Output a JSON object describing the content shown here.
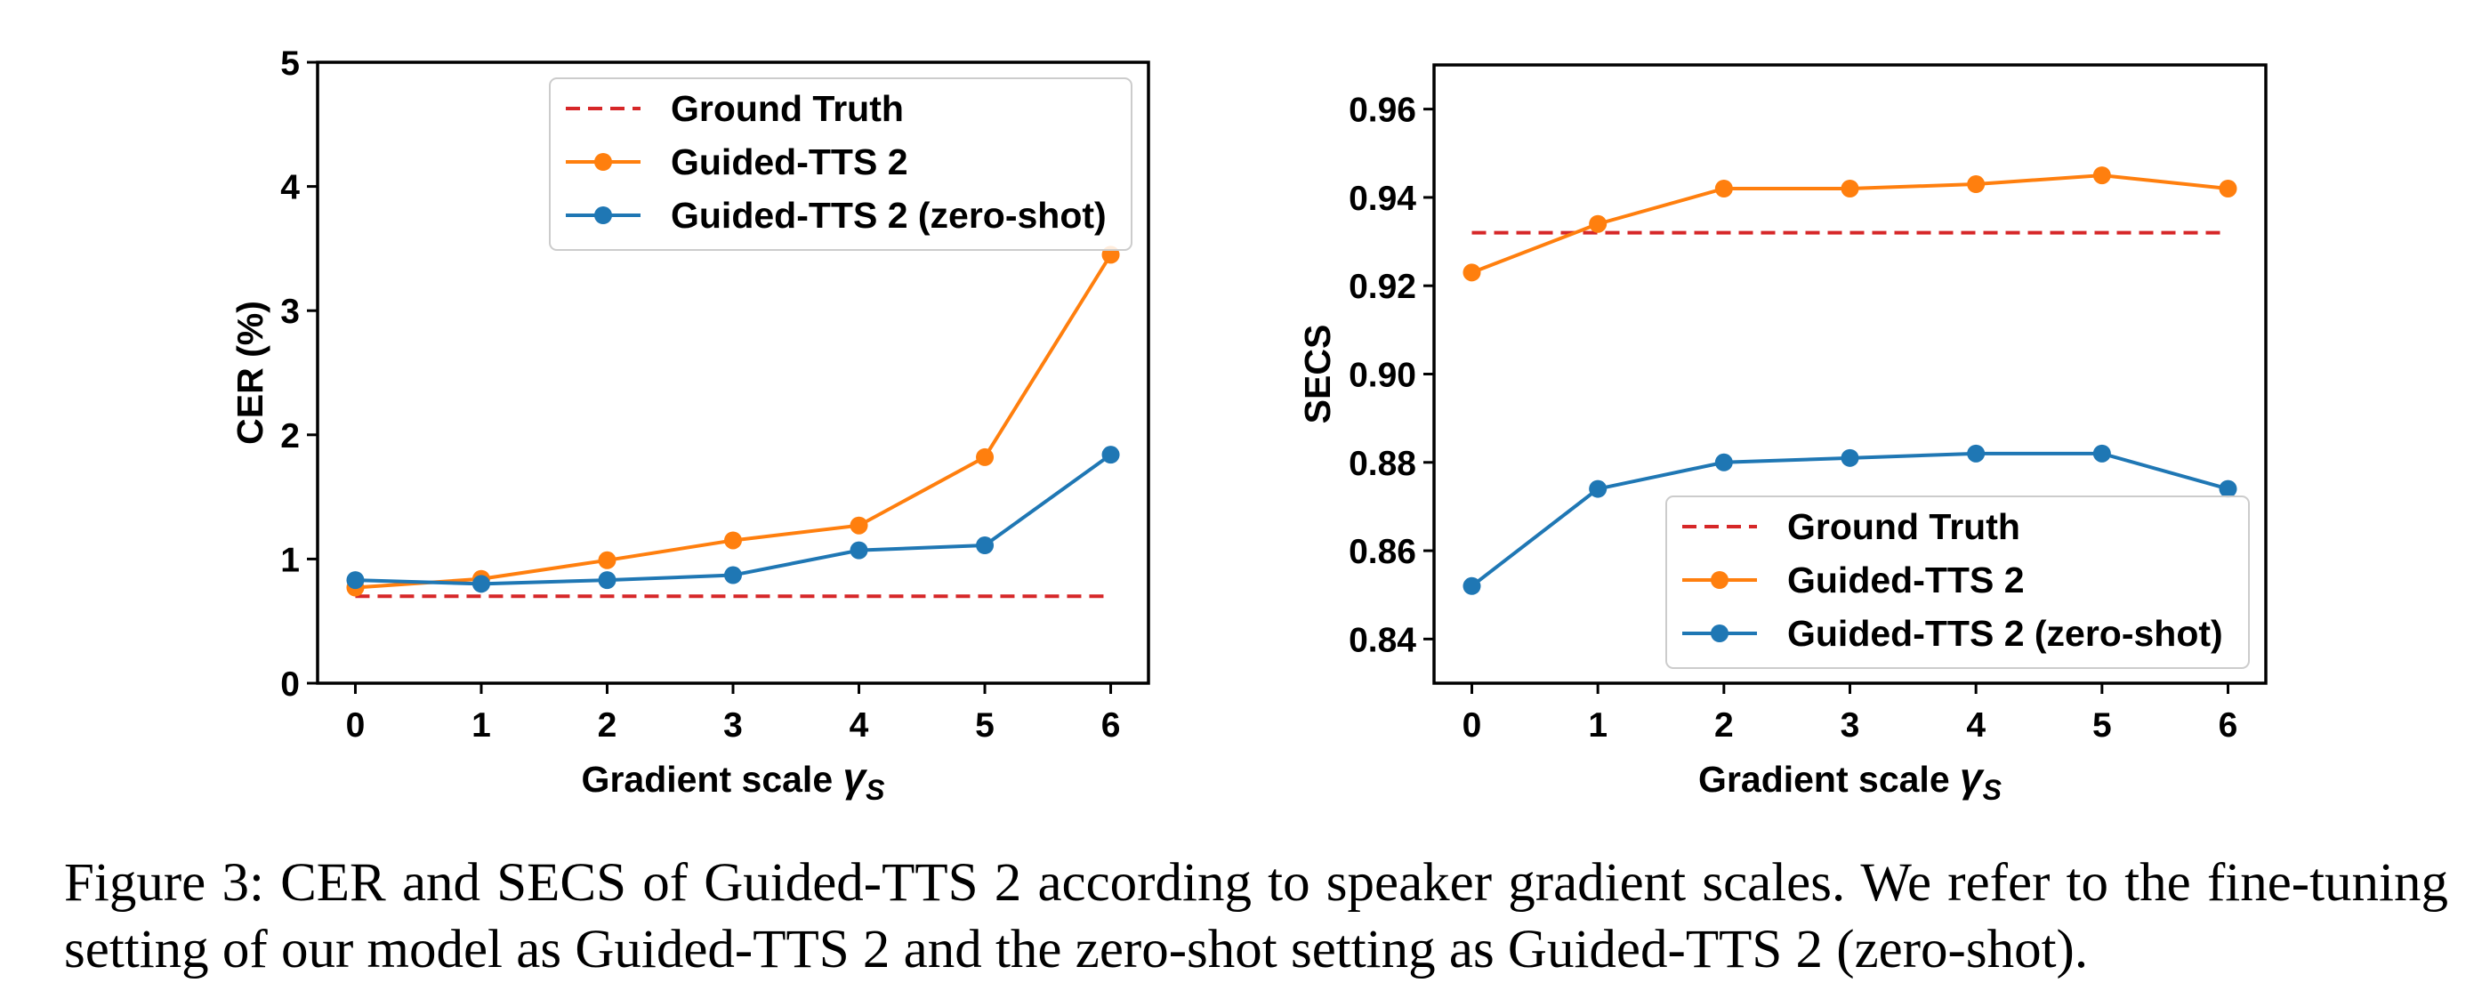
{
  "chart_data": [
    {
      "type": "line",
      "x": [
        0,
        1,
        2,
        3,
        4,
        5,
        6
      ],
      "xlabel": "Gradient scale",
      "xlabel_symbol": "γ",
      "xlabel_subscript": "S",
      "ylabel": "CER (%)",
      "xlim": [
        -0.3,
        6.3
      ],
      "ylim": [
        0,
        5
      ],
      "yticks": [
        "0",
        "1",
        "2",
        "3",
        "4",
        "5"
      ],
      "xticks": [
        "0",
        "1",
        "2",
        "3",
        "4",
        "5",
        "6"
      ],
      "legend_position": "upper-right",
      "grid": false,
      "series": [
        {
          "name": "Ground Truth",
          "style": "dashed",
          "color": "#d62728",
          "values": [
            0.7,
            0.7,
            0.7,
            0.7,
            0.7,
            0.7,
            0.7
          ]
        },
        {
          "name": "Guided-TTS 2",
          "style": "line-marker",
          "color": "#ff7f0e",
          "values": [
            0.77,
            0.84,
            0.99,
            1.15,
            1.27,
            1.82,
            3.45
          ]
        },
        {
          "name": "Guided-TTS 2 (zero-shot)",
          "style": "line-marker",
          "color": "#1f77b4",
          "values": [
            0.83,
            0.8,
            0.83,
            0.87,
            1.07,
            1.11,
            1.84
          ]
        }
      ]
    },
    {
      "type": "line",
      "x": [
        0,
        1,
        2,
        3,
        4,
        5,
        6
      ],
      "xlabel": "Gradient scale",
      "xlabel_symbol": "γ",
      "xlabel_subscript": "S",
      "ylabel": "SECS",
      "xlim": [
        -0.3,
        6.3
      ],
      "ylim": [
        0.83,
        0.97
      ],
      "yticks": [
        "0.84",
        "0.86",
        "0.88",
        "0.90",
        "0.92",
        "0.94",
        "0.96"
      ],
      "xticks": [
        "0",
        "1",
        "2",
        "3",
        "4",
        "5",
        "6"
      ],
      "legend_position": "lower-right",
      "grid": false,
      "series": [
        {
          "name": "Ground Truth",
          "style": "dashed",
          "color": "#d62728",
          "values": [
            0.932,
            0.932,
            0.932,
            0.932,
            0.932,
            0.932,
            0.932
          ]
        },
        {
          "name": "Guided-TTS 2",
          "style": "line-marker",
          "color": "#ff7f0e",
          "values": [
            0.923,
            0.934,
            0.942,
            0.942,
            0.943,
            0.945,
            0.942
          ]
        },
        {
          "name": "Guided-TTS 2 (zero-shot)",
          "style": "line-marker",
          "color": "#1f77b4",
          "values": [
            0.852,
            0.874,
            0.88,
            0.881,
            0.882,
            0.882,
            0.874
          ]
        }
      ]
    }
  ],
  "caption": "Figure 3: CER and SECS of Guided-TTS 2 according to speaker gradient scales. We refer to the fine-tuning setting of our model as Guided-TTS 2 and the zero-shot setting as Guided-TTS 2 (zero-shot)."
}
